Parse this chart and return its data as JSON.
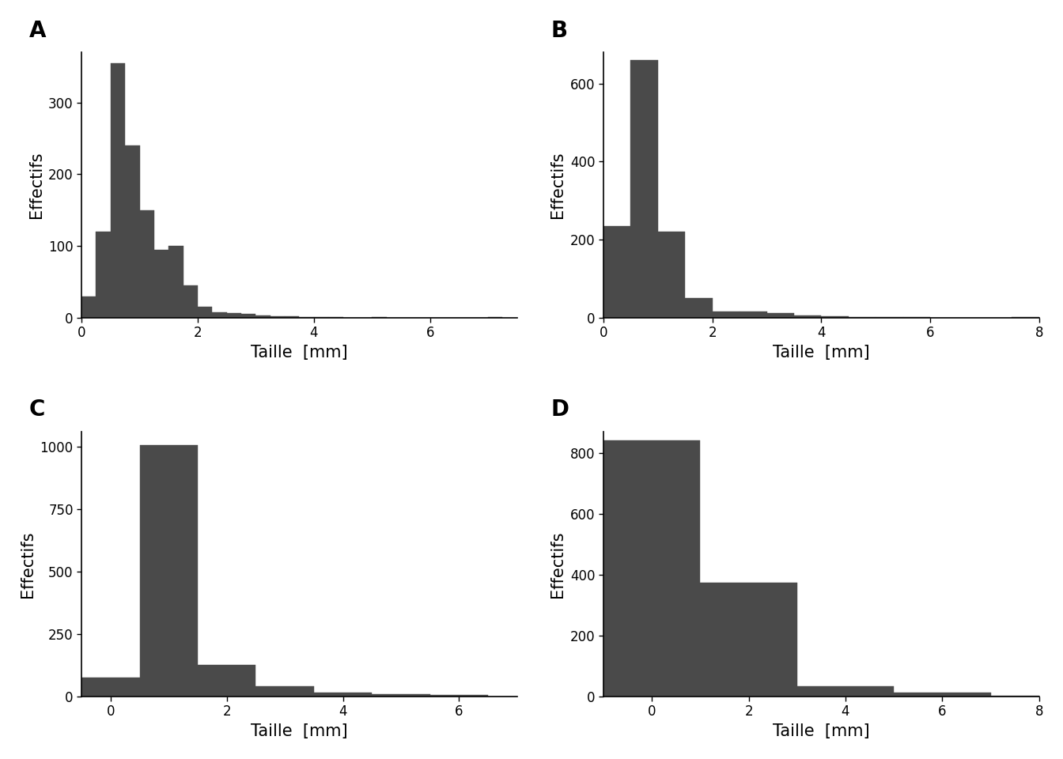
{
  "panels": [
    "A",
    "B",
    "C",
    "D"
  ],
  "bar_color": "#4a4a4a",
  "bar_edge_color": "#4a4a4a",
  "ylabel": "Effectifs",
  "xlabel": "Taille  [mm]",
  "background_color": "#ffffff",
  "label_fontsize": 15,
  "tick_fontsize": 12,
  "panel_label_fontsize": 20,
  "A": {
    "bin_start": 0.0,
    "bin_width": 0.25,
    "counts": [
      30,
      120,
      355,
      240,
      150,
      95,
      100,
      45,
      15,
      7,
      6,
      5,
      3,
      2,
      2,
      1,
      1,
      1,
      0,
      0,
      1,
      0,
      0,
      0,
      0,
      0,
      0,
      0,
      1
    ],
    "xlim": [
      0,
      7.5
    ],
    "xticks": [
      0,
      2,
      4,
      6
    ],
    "yticks": [
      0,
      100,
      200,
      300
    ],
    "ylim": [
      0,
      370
    ]
  },
  "B": {
    "bin_start": 0.0,
    "bin_width": 0.5,
    "counts": [
      235,
      660,
      220,
      50,
      15,
      15,
      12,
      5,
      3,
      2,
      1,
      1,
      0,
      0,
      0,
      1
    ],
    "xlim": [
      0,
      8
    ],
    "xticks": [
      0,
      2,
      4,
      6,
      8
    ],
    "yticks": [
      0,
      200,
      400,
      600
    ],
    "ylim": [
      0,
      680
    ]
  },
  "C": {
    "bin_start": -0.5,
    "bin_width": 1.0,
    "counts": [
      75,
      1005,
      125,
      40,
      15,
      8,
      5,
      1
    ],
    "xlim": [
      -0.5,
      7
    ],
    "xticks": [
      0,
      2,
      4,
      6
    ],
    "yticks": [
      0,
      250,
      500,
      750,
      1000
    ],
    "ylim": [
      0,
      1060
    ]
  },
  "D": {
    "bin_start": -1.0,
    "bin_width": 2.0,
    "counts": [
      840,
      375,
      35,
      12,
      2,
      1
    ],
    "xlim": [
      -1,
      8
    ],
    "xticks": [
      0,
      2,
      4,
      6,
      8
    ],
    "yticks": [
      0,
      200,
      400,
      600,
      800
    ],
    "ylim": [
      0,
      870
    ]
  }
}
